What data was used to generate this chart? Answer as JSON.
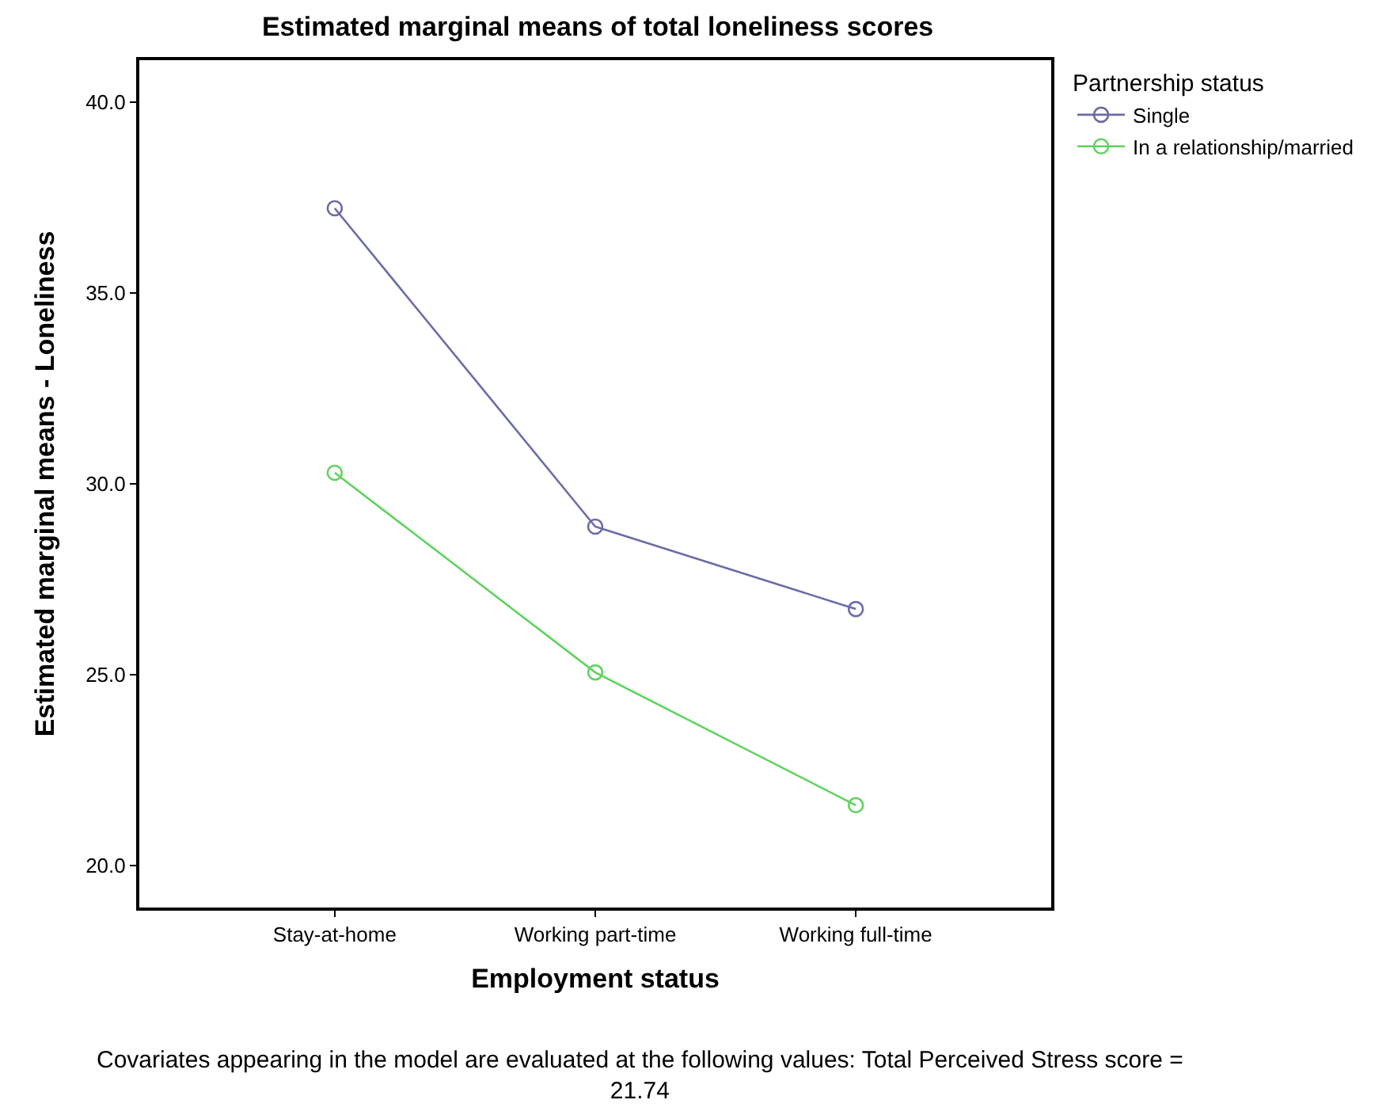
{
  "chart_data": {
    "type": "line",
    "title": "Estimated marginal means of total loneliness scores",
    "xlabel": "Employment status",
    "ylabel": "Estimated marginal means - Loneliness",
    "legend_title": "Partnership status",
    "categories": [
      "Stay-at-home",
      "Working part-time",
      "Working full-time"
    ],
    "series": [
      {
        "name": "Single",
        "color": "#6b6ba8",
        "values": [
          37.22,
          28.88,
          26.72
        ]
      },
      {
        "name": "In a relationship/married",
        "color": "#5fd35f",
        "values": [
          30.29,
          25.06,
          21.58
        ]
      }
    ],
    "ylim": [
      18.9,
      41.1
    ],
    "yticks": [
      {
        "value": 20,
        "label": "20.0"
      },
      {
        "value": 25,
        "label": "25.0"
      },
      {
        "value": 30,
        "label": "30.0"
      },
      {
        "value": 35,
        "label": "35.0"
      },
      {
        "value": 40,
        "label": "40.0"
      }
    ],
    "marker": "circle",
    "line_style": "solid",
    "legend": "top right",
    "annotations": [
      "Covariates appearing in the model are evaluated at the following values: Total Perceived Stress score = 21.74"
    ]
  }
}
